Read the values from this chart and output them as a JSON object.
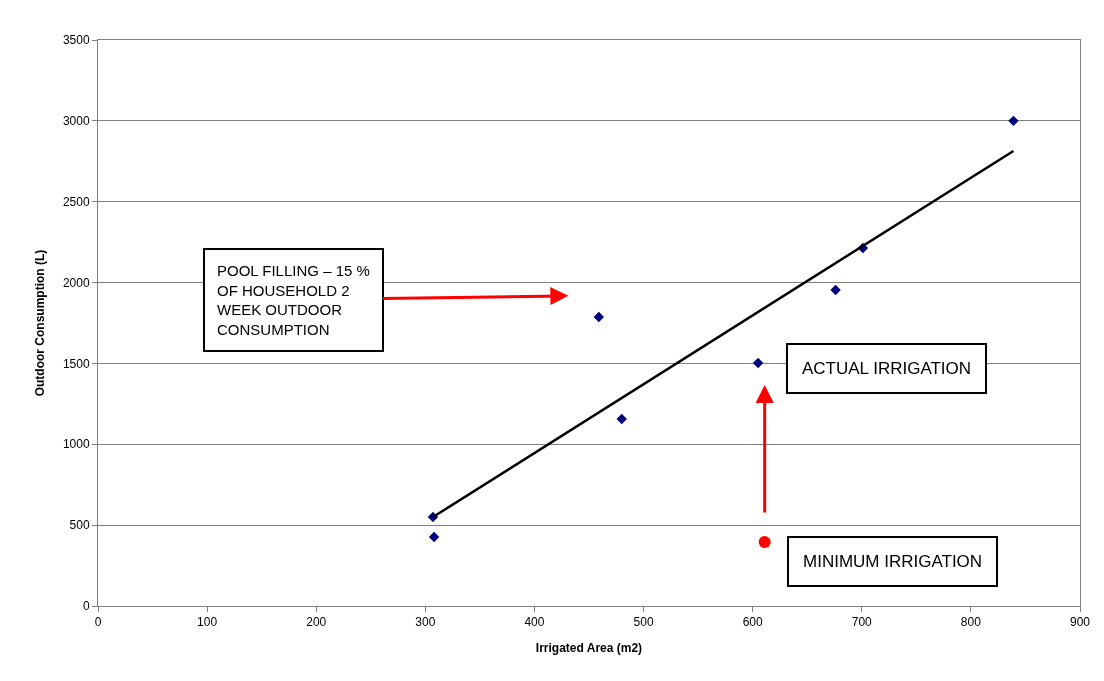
{
  "chart_data": {
    "type": "scatter",
    "xlabel": "Irrigated Area (m2)",
    "ylabel": "Outdoor Consumption (L)",
    "xlim": [
      0,
      900
    ],
    "xticks": [
      0,
      100,
      200,
      300,
      400,
      500,
      600,
      700,
      800,
      900
    ],
    "ylim": [
      0,
      3500
    ],
    "yticks": [
      0,
      500,
      1000,
      1500,
      2000,
      2500,
      3000,
      3500
    ],
    "grid": "y",
    "marker": "diamond",
    "series": [
      {
        "color": "#000080",
        "x": [
          307,
          308,
          459,
          480,
          605,
          676,
          701,
          839
        ],
        "values": [
          550,
          427,
          1787,
          1156,
          1503,
          1954,
          2214,
          3000
        ]
      },
      {
        "type": "line",
        "color": "#000000",
        "marker": "none",
        "line_style": "solid",
        "x": [
          307,
          839
        ],
        "values": [
          550,
          2814
        ]
      },
      {
        "type": "scatter",
        "color": "#ff0000",
        "marker": "circle",
        "x": [
          611
        ],
        "values": [
          396
        ]
      }
    ],
    "annotations": [
      "POOL FILLING – 15 %\nOF HOUSEHOLD 2\nWEEK OUTDOOR\nCONSUMPTION",
      {
        "text": "ACTUAL IRRIGATION",
        "x": 605,
        "y": 1503
      },
      {
        "text": "MINIMUM IRRIGATION",
        "x": 611,
        "y": 396
      }
    ]
  }
}
